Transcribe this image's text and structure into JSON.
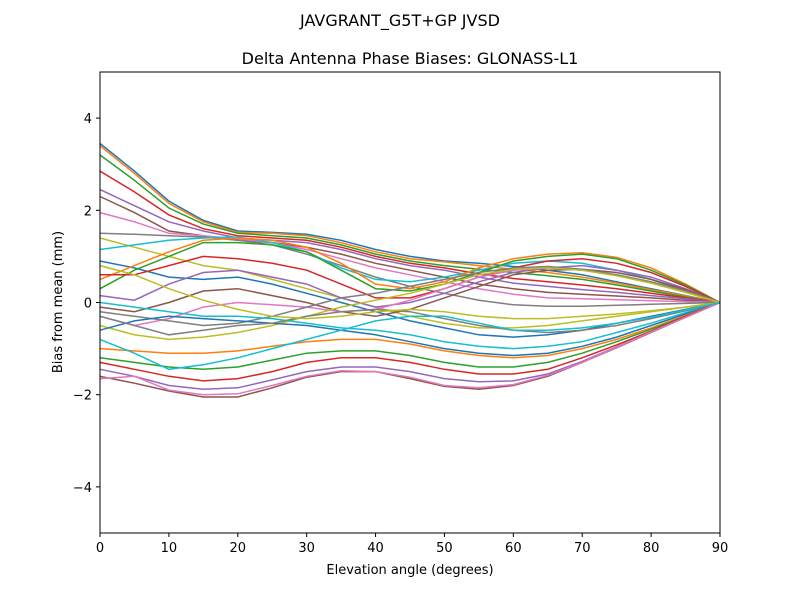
{
  "figure_title": "JAVGRANT_G5T+GP JVSD",
  "chart_data": {
    "type": "line",
    "title": "Delta Antenna Phase Biases: GLONASS-L1",
    "xlabel": "Elevation angle (degrees)",
    "ylabel": "Bias from mean (mm)",
    "xlim": [
      0,
      90
    ],
    "ylim": [
      -5,
      5
    ],
    "xticks": [
      0,
      10,
      20,
      30,
      40,
      50,
      60,
      70,
      80,
      90
    ],
    "yticks": [
      -4,
      -2,
      0,
      2,
      4
    ],
    "ytick_labels": [
      "−4",
      "−2",
      "0",
      "2",
      "4"
    ],
    "grid": false,
    "legend": "none",
    "colors": [
      "#1f77b4",
      "#ff7f0e",
      "#2ca02c",
      "#d62728",
      "#9467bd",
      "#8c564b",
      "#e377c2",
      "#7f7f7f",
      "#bcbd22",
      "#17becf"
    ],
    "x": [
      0,
      5,
      10,
      15,
      20,
      25,
      30,
      35,
      40,
      45,
      50,
      55,
      60,
      65,
      70,
      75,
      80,
      85,
      90
    ],
    "series": [
      [
        3.45,
        2.85,
        2.2,
        1.78,
        1.55,
        1.52,
        1.48,
        1.35,
        1.15,
        1.0,
        0.9,
        0.85,
        0.78,
        0.7,
        0.6,
        0.45,
        0.3,
        0.15,
        0
      ],
      [
        3.4,
        2.8,
        2.15,
        1.75,
        1.52,
        1.5,
        1.45,
        1.3,
        1.1,
        0.95,
        0.88,
        0.8,
        0.72,
        0.65,
        0.55,
        0.42,
        0.28,
        0.14,
        0
      ],
      [
        3.2,
        2.65,
        2.05,
        1.7,
        1.5,
        1.45,
        1.4,
        1.25,
        1.05,
        0.9,
        0.8,
        0.72,
        0.65,
        0.58,
        0.5,
        0.38,
        0.25,
        0.12,
        0
      ],
      [
        2.85,
        2.4,
        1.9,
        1.6,
        1.45,
        1.4,
        1.35,
        1.2,
        1.0,
        0.85,
        0.75,
        0.62,
        0.52,
        0.45,
        0.38,
        0.3,
        0.2,
        0.1,
        0
      ],
      [
        2.45,
        2.1,
        1.75,
        1.55,
        1.4,
        1.35,
        1.3,
        1.15,
        0.95,
        0.8,
        0.7,
        0.55,
        0.42,
        0.35,
        0.28,
        0.22,
        0.15,
        0.08,
        0
      ],
      [
        2.3,
        1.95,
        1.55,
        1.45,
        1.35,
        1.3,
        1.2,
        1.05,
        0.85,
        0.7,
        0.55,
        0.4,
        0.3,
        0.22,
        0.18,
        0.14,
        0.1,
        0.05,
        0
      ],
      [
        1.95,
        1.75,
        1.5,
        1.45,
        1.38,
        1.3,
        1.15,
        0.95,
        0.75,
        0.6,
        0.45,
        0.3,
        0.18,
        0.1,
        0.08,
        0.06,
        0.04,
        0.02,
        0
      ],
      [
        1.5,
        1.48,
        1.45,
        1.42,
        1.35,
        1.25,
        1.05,
        0.8,
        0.55,
        0.35,
        0.2,
        0.05,
        -0.05,
        -0.08,
        -0.08,
        -0.06,
        -0.04,
        -0.02,
        0
      ],
      [
        1.4,
        1.2,
        1.0,
        0.8,
        0.7,
        0.5,
        0.3,
        0.1,
        -0.1,
        -0.3,
        -0.45,
        -0.55,
        -0.55,
        -0.5,
        -0.4,
        -0.3,
        -0.2,
        -0.1,
        0
      ],
      [
        1.15,
        1.25,
        1.35,
        1.4,
        1.42,
        1.3,
        1.1,
        0.75,
        0.5,
        0.45,
        0.55,
        0.7,
        0.85,
        0.9,
        0.85,
        0.7,
        0.5,
        0.25,
        0
      ],
      [
        0.9,
        0.75,
        0.55,
        0.5,
        0.55,
        0.4,
        0.2,
        0.0,
        -0.2,
        -0.4,
        -0.55,
        -0.7,
        -0.75,
        -0.7,
        -0.6,
        -0.45,
        -0.3,
        -0.15,
        0
      ],
      [
        0.5,
        0.8,
        1.1,
        1.35,
        1.4,
        1.35,
        1.2,
        0.85,
        0.4,
        0.3,
        0.45,
        0.75,
        0.95,
        1.05,
        1.08,
        0.98,
        0.75,
        0.4,
        0
      ],
      [
        0.3,
        0.7,
        1.0,
        1.3,
        1.3,
        1.25,
        1.1,
        0.7,
        0.3,
        0.25,
        0.4,
        0.65,
        0.9,
        1.0,
        1.05,
        0.95,
        0.7,
        0.38,
        0
      ],
      [
        0.6,
        0.6,
        0.8,
        1.0,
        0.95,
        0.85,
        0.7,
        0.4,
        0.1,
        0.1,
        0.3,
        0.55,
        0.75,
        0.9,
        0.95,
        0.85,
        0.65,
        0.35,
        0
      ],
      [
        0.15,
        0.05,
        0.4,
        0.65,
        0.7,
        0.55,
        0.4,
        0.1,
        -0.1,
        0.0,
        0.2,
        0.45,
        0.65,
        0.75,
        0.8,
        0.7,
        0.55,
        0.3,
        0
      ],
      [
        -0.1,
        -0.2,
        0.0,
        0.25,
        0.3,
        0.15,
        0.0,
        -0.2,
        -0.3,
        -0.15,
        0.1,
        0.35,
        0.6,
        0.7,
        0.72,
        0.65,
        0.5,
        0.28,
        0
      ],
      [
        -0.3,
        -0.5,
        -0.35,
        -0.1,
        0.0,
        -0.05,
        -0.1,
        -0.2,
        -0.15,
        0.05,
        0.3,
        0.55,
        0.7,
        0.75,
        0.7,
        0.6,
        0.45,
        0.25,
        0
      ],
      [
        -0.2,
        -0.3,
        -0.4,
        -0.5,
        -0.45,
        -0.3,
        -0.1,
        0.1,
        0.2,
        0.35,
        0.5,
        0.65,
        0.75,
        0.78,
        0.72,
        0.6,
        0.45,
        0.25,
        0
      ],
      [
        -0.5,
        -0.7,
        -0.8,
        -0.75,
        -0.65,
        -0.5,
        -0.3,
        -0.1,
        0.05,
        0.2,
        0.4,
        0.6,
        0.72,
        0.75,
        0.7,
        0.58,
        0.42,
        0.22,
        0
      ],
      [
        0.0,
        -0.1,
        -0.2,
        -0.3,
        -0.3,
        -0.35,
        -0.45,
        -0.55,
        -0.6,
        -0.7,
        -0.85,
        -0.95,
        -1.0,
        -0.95,
        -0.85,
        -0.65,
        -0.45,
        -0.22,
        0
      ],
      [
        -0.6,
        -0.4,
        -0.3,
        -0.35,
        -0.4,
        -0.45,
        -0.5,
        -0.6,
        -0.7,
        -0.85,
        -1.0,
        -1.1,
        -1.15,
        -1.1,
        -0.95,
        -0.75,
        -0.5,
        -0.25,
        0
      ],
      [
        -1.0,
        -1.05,
        -1.1,
        -1.1,
        -1.05,
        -0.95,
        -0.85,
        -0.8,
        -0.8,
        -0.9,
        -1.05,
        -1.15,
        -1.2,
        -1.15,
        -1.0,
        -0.8,
        -0.55,
        -0.28,
        0
      ],
      [
        -1.2,
        -1.3,
        -1.4,
        -1.45,
        -1.4,
        -1.25,
        -1.1,
        -1.05,
        -1.05,
        -1.15,
        -1.3,
        -1.4,
        -1.4,
        -1.3,
        -1.1,
        -0.85,
        -0.58,
        -0.3,
        0
      ],
      [
        -1.3,
        -1.45,
        -1.6,
        -1.7,
        -1.65,
        -1.5,
        -1.3,
        -1.2,
        -1.2,
        -1.3,
        -1.45,
        -1.55,
        -1.55,
        -1.45,
        -1.2,
        -0.92,
        -0.62,
        -0.3,
        0
      ],
      [
        -1.45,
        -1.6,
        -1.8,
        -1.88,
        -1.85,
        -1.68,
        -1.5,
        -1.4,
        -1.4,
        -1.5,
        -1.65,
        -1.72,
        -1.7,
        -1.55,
        -1.28,
        -0.96,
        -0.64,
        -0.32,
        0
      ],
      [
        -1.6,
        -1.75,
        -1.92,
        -2.05,
        -2.05,
        -1.85,
        -1.62,
        -1.5,
        -1.5,
        -1.65,
        -1.82,
        -1.88,
        -1.8,
        -1.6,
        -1.3,
        -0.98,
        -0.65,
        -0.32,
        0
      ],
      [
        -1.65,
        -1.6,
        -1.9,
        -2.0,
        -1.98,
        -1.8,
        -1.6,
        -1.48,
        -1.5,
        -1.62,
        -1.8,
        -1.85,
        -1.78,
        -1.58,
        -1.3,
        -0.97,
        -0.64,
        -0.32,
        0
      ],
      [
        -0.3,
        -0.5,
        -0.7,
        -0.6,
        -0.5,
        -0.45,
        -0.3,
        -0.2,
        -0.15,
        -0.2,
        -0.35,
        -0.5,
        -0.6,
        -0.65,
        -0.6,
        -0.5,
        -0.35,
        -0.18,
        0
      ],
      [
        0.8,
        0.6,
        0.3,
        0.05,
        -0.15,
        -0.3,
        -0.35,
        -0.3,
        -0.2,
        -0.15,
        -0.2,
        -0.3,
        -0.35,
        -0.35,
        -0.3,
        -0.25,
        -0.18,
        -0.1,
        0
      ],
      [
        -0.8,
        -1.1,
        -1.45,
        -1.35,
        -1.2,
        -1.0,
        -0.8,
        -0.6,
        -0.4,
        -0.3,
        -0.3,
        -0.45,
        -0.6,
        -0.6,
        -0.55,
        -0.45,
        -0.32,
        -0.16,
        0
      ]
    ]
  }
}
